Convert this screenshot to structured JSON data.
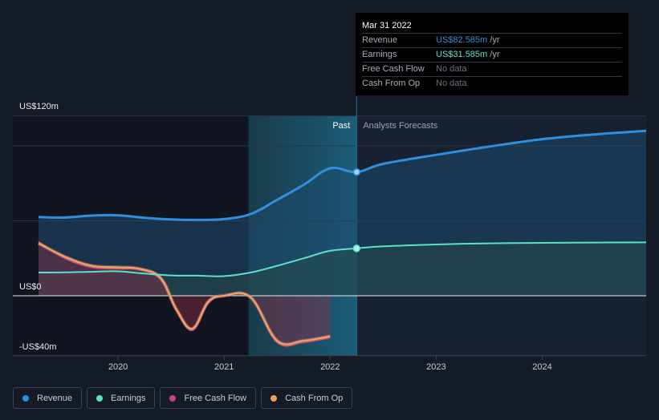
{
  "chart_data": {
    "type": "line",
    "ylabel_ticks": [
      "US$120m",
      "US$0",
      "-US$40m"
    ],
    "ylim": [
      -40,
      120
    ],
    "x_ticks": [
      "2020",
      "2021",
      "2022",
      "2023",
      "2024"
    ],
    "xlim": [
      2019.25,
      2024.98
    ],
    "divider_labels": {
      "past": "Past",
      "forecast": "Analysts Forecasts"
    },
    "divider_x": 2022.25,
    "highlight_start": 2021.23,
    "series": [
      {
        "name": "Revenue",
        "color": "#2f8fdc",
        "x": [
          2019.25,
          2019.5,
          2019.75,
          2020.0,
          2020.25,
          2020.5,
          2020.75,
          2021.0,
          2021.25,
          2021.5,
          2021.75,
          2022.0,
          2022.25,
          2022.5,
          2023.0,
          2023.5,
          2024.0,
          2024.5,
          2024.98
        ],
        "y": [
          52.5,
          52.2,
          53.5,
          53.7,
          52.0,
          50.9,
          50.6,
          51.2,
          54.5,
          64,
          74,
          85,
          82.585,
          88,
          94,
          99.5,
          104.5,
          107.7,
          110
        ]
      },
      {
        "name": "Earnings",
        "color": "#5ce1c8",
        "x": [
          2019.25,
          2019.5,
          2019.75,
          2020.0,
          2020.25,
          2020.5,
          2020.75,
          2021.0,
          2021.25,
          2021.5,
          2021.75,
          2022.0,
          2022.25,
          2022.5,
          2023.0,
          2023.5,
          2024.0,
          2024.5,
          2024.98
        ],
        "y": [
          15.5,
          15.6,
          16.0,
          16.3,
          14.8,
          13.6,
          13.4,
          13.1,
          15.5,
          20,
          25,
          30,
          31.585,
          33,
          34.2,
          35,
          35.3,
          35.5,
          35.6
        ]
      },
      {
        "name": "Free Cash Flow",
        "color": "#c8467f",
        "x": [
          2019.25,
          2019.5,
          2019.75,
          2020.0,
          2020.2,
          2020.4,
          2020.55,
          2020.7,
          2020.85,
          2021.0,
          2021.25,
          2021.5,
          2021.75,
          2022.0
        ],
        "y": [
          36,
          25,
          19,
          18,
          17.5,
          11,
          -10,
          -23,
          -5,
          0,
          -1,
          -31,
          -31,
          -28
        ]
      },
      {
        "name": "Cash From Op",
        "color": "#f0a35a",
        "x": [
          2019.25,
          2019.5,
          2019.75,
          2020.0,
          2020.2,
          2020.4,
          2020.55,
          2020.7,
          2020.85,
          2021.0,
          2021.25,
          2021.5,
          2021.75,
          2022.0
        ],
        "y": [
          35,
          26,
          20,
          19,
          18,
          12,
          -9,
          -22,
          -4,
          0,
          -1,
          -30,
          -30,
          -27
        ]
      }
    ]
  },
  "tooltip": {
    "date": "Mar 31 2022",
    "rows": [
      {
        "label": "Revenue",
        "value": "US$82.585m",
        "unit": " /yr",
        "color": "#2f8fdc"
      },
      {
        "label": "Earnings",
        "value": "US$31.585m",
        "unit": " /yr",
        "color": "#5ce1c8"
      },
      {
        "label": "Free Cash Flow",
        "value": "No data",
        "unit": "",
        "color": "#6b7280"
      },
      {
        "label": "Cash From Op",
        "value": "No data",
        "unit": "",
        "color": "#6b7280"
      }
    ]
  },
  "legend": [
    {
      "label": "Revenue",
      "color": "#2f8fdc"
    },
    {
      "label": "Earnings",
      "color": "#5ce1c8"
    },
    {
      "label": "Free Cash Flow",
      "color": "#c8467f"
    },
    {
      "label": "Cash From Op",
      "color": "#f0a35a"
    }
  ]
}
